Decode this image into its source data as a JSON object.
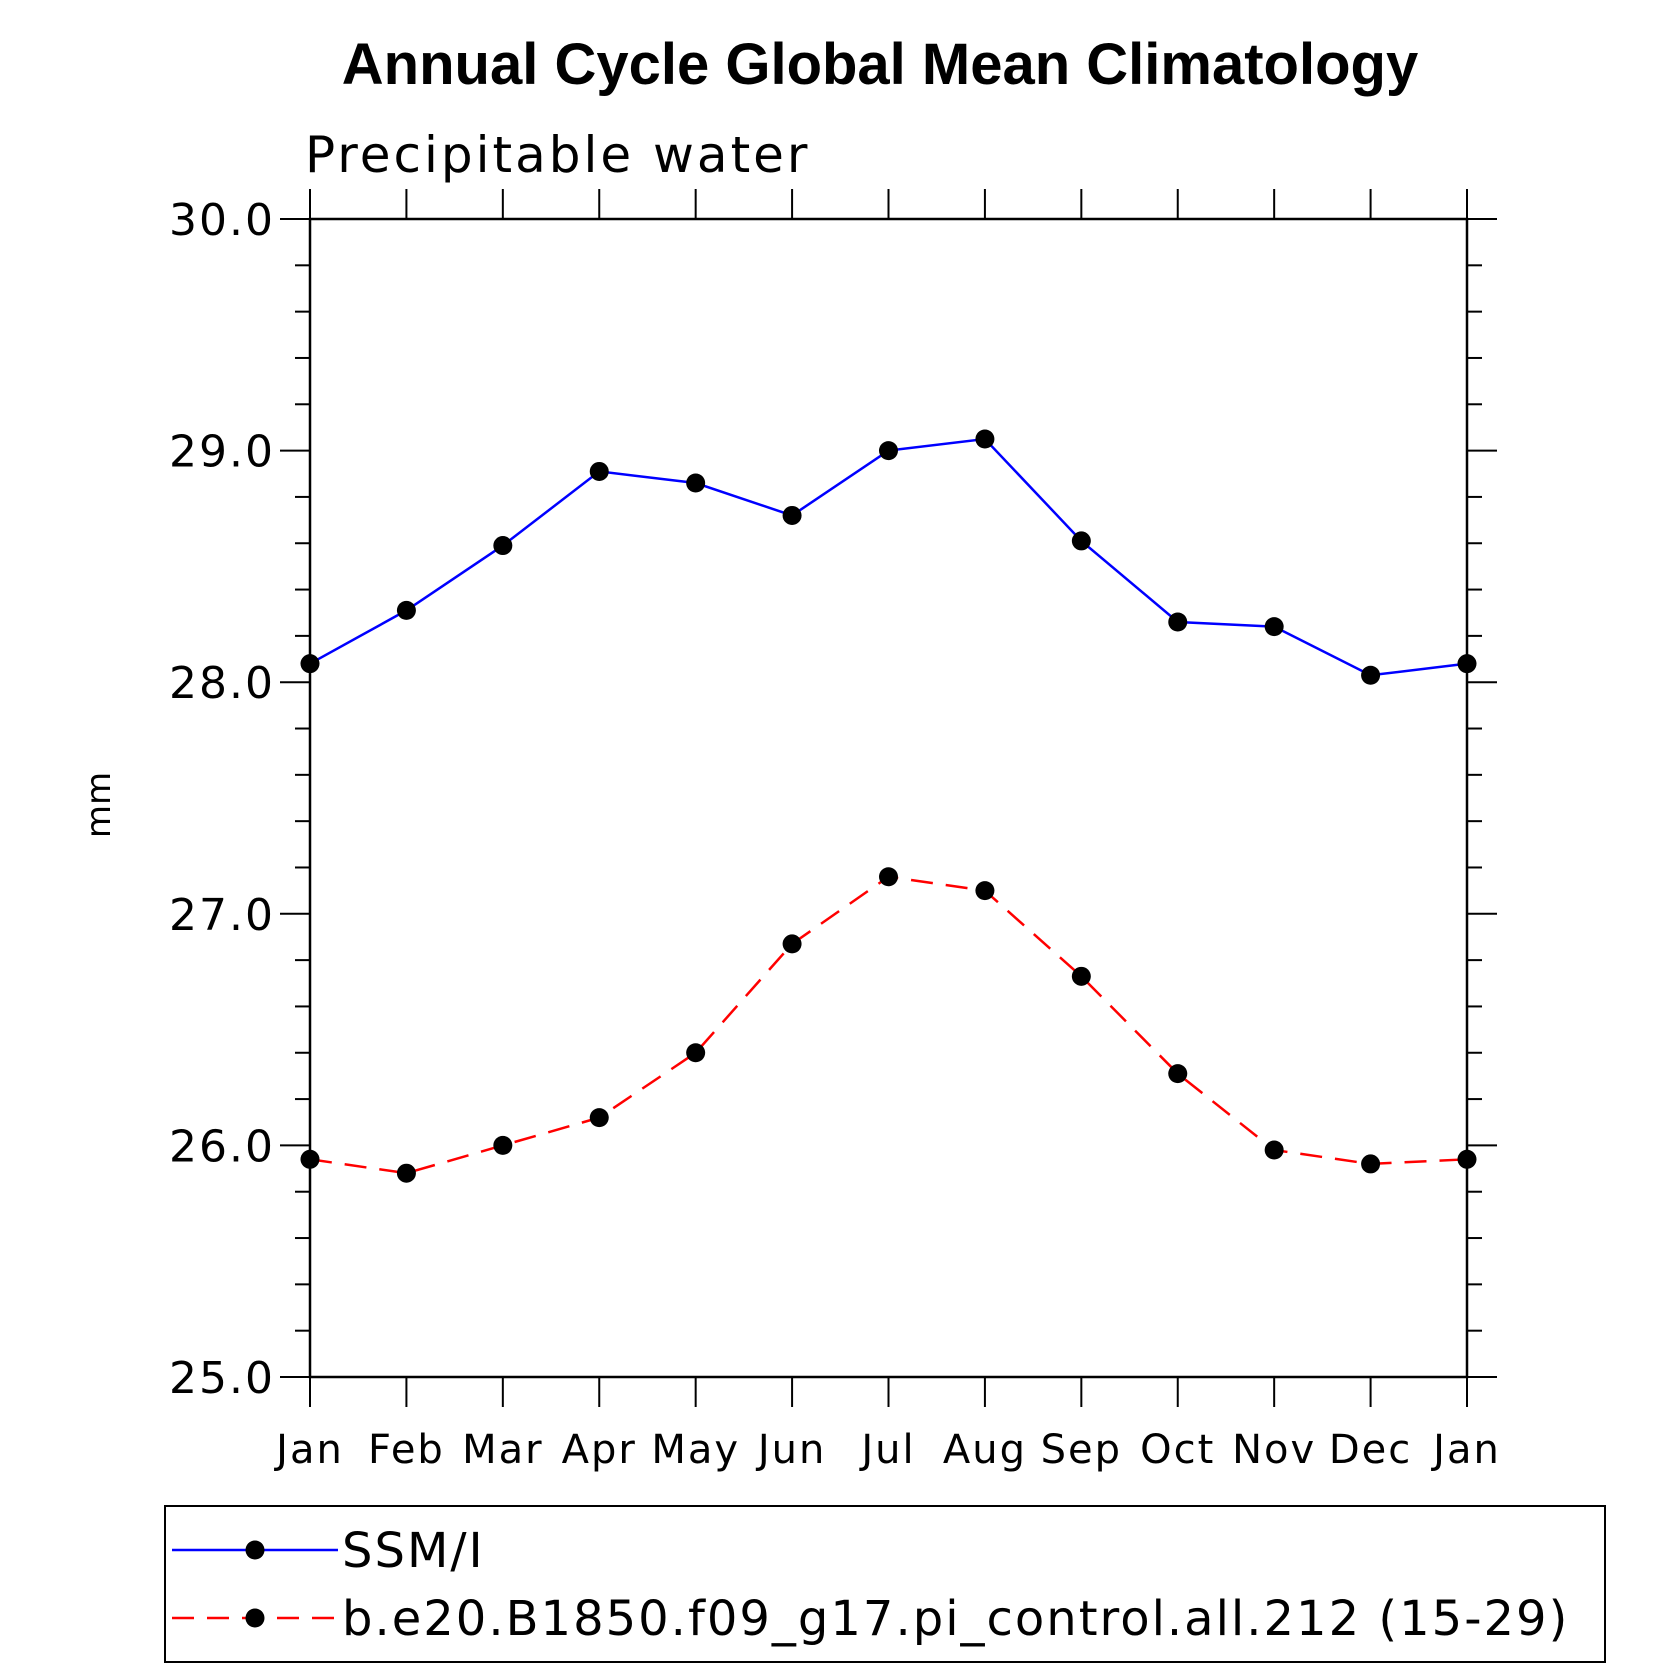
{
  "chart_data": {
    "type": "line",
    "title": "Annual Cycle Global Mean Climatology",
    "subtitle": "Precipitable water",
    "xlabel": "",
    "ylabel": "mm",
    "categories": [
      "Jan",
      "Feb",
      "Mar",
      "Apr",
      "May",
      "Jun",
      "Jul",
      "Aug",
      "Sep",
      "Oct",
      "Nov",
      "Dec",
      "Jan"
    ],
    "ylim": [
      25.0,
      30.0
    ],
    "yticks": [
      "25.0",
      "26.0",
      "27.0",
      "28.0",
      "29.0",
      "30.0"
    ],
    "y_minor_step": 0.2,
    "grid": false,
    "legend_position": "bottom",
    "series": [
      {
        "name": "SSM/I",
        "color": "#0000ff",
        "line_style": "solid",
        "marker": "filled-circle",
        "values": [
          28.08,
          28.31,
          28.59,
          28.91,
          28.86,
          28.72,
          29.0,
          29.05,
          28.61,
          28.26,
          28.24,
          28.03,
          28.08
        ]
      },
      {
        "name": "b.e20.B1850.f09_g17.pi_control.all.212 (15-29)",
        "color": "#ff0000",
        "line_style": "dashed",
        "marker": "filled-circle",
        "values": [
          25.94,
          25.88,
          26.0,
          26.12,
          26.4,
          26.87,
          27.16,
          27.1,
          26.73,
          26.31,
          25.98,
          25.92,
          25.94
        ]
      }
    ]
  }
}
